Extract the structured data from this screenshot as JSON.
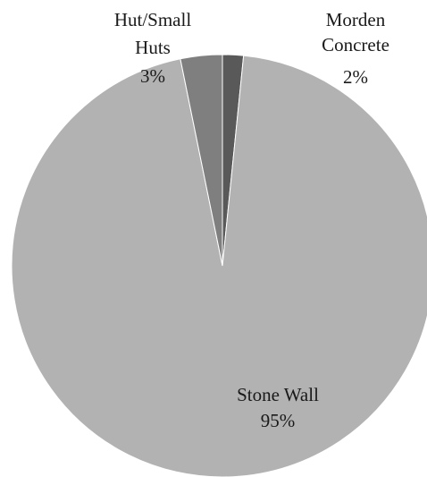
{
  "chart_data": {
    "type": "pie",
    "title": "",
    "start_angle_deg": 0,
    "direction": "clockwise",
    "legend": "none",
    "slices": [
      {
        "category": "Morden Concrete",
        "label_lines": [
          "Morden",
          "Concrete"
        ],
        "percent_label": "2%",
        "value": 1.6,
        "color": "#595959"
      },
      {
        "category": "Stone Wall",
        "label_lines": [
          "Stone Wall"
        ],
        "percent_label": "95%",
        "value": 95.2,
        "color": "#b2b2b2"
      },
      {
        "category": "Hut/Small Huts",
        "label_lines": [
          "Hut/Small",
          "Huts"
        ],
        "percent_label": "3%",
        "value": 3.2,
        "color": "#7f7f7f"
      }
    ]
  }
}
